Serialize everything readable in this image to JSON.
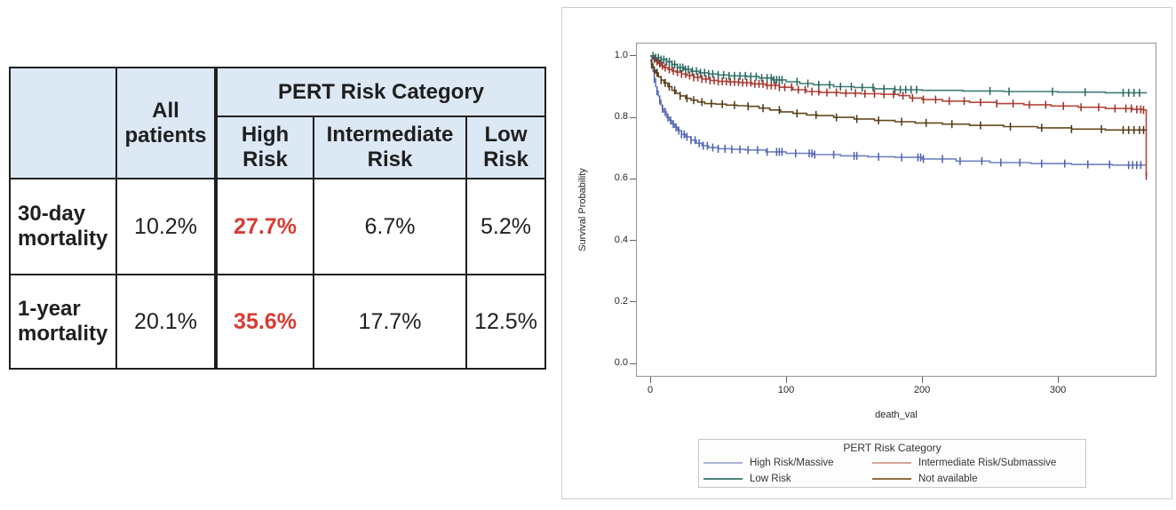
{
  "table": {
    "header": {
      "corner": "",
      "all_patients": "All patients",
      "group_title": "PERT Risk Category",
      "group_cols": [
        "High Risk",
        "Intermediate Risk",
        "Low Risk"
      ]
    },
    "rows": [
      {
        "label": "30-day mortality",
        "all": "10.2%",
        "high": "27.7%",
        "intermediate": "6.7%",
        "low": "5.2%"
      },
      {
        "label": "1-year mortality",
        "all": "20.1%",
        "high": "35.6%",
        "intermediate": "17.7%",
        "low": "12.5%"
      }
    ],
    "colors": {
      "header_bg": "#dce8f4",
      "highlight_red": "#d83b32",
      "border": "#1f1f1f"
    }
  },
  "chart_data": {
    "type": "line",
    "subtype": "kaplan_meier_step_survival",
    "title": "",
    "xlabel": "death_val",
    "ylabel": "Survival Probability",
    "xlim": [
      -10.5,
      372.5
    ],
    "ylim": [
      -0.043,
      1.043
    ],
    "xticks": [
      0,
      100,
      200,
      300
    ],
    "yticks": [
      0.0,
      0.2,
      0.4,
      0.6,
      0.8,
      1.0
    ],
    "grid": false,
    "legend": {
      "title": "PERT Risk Category",
      "position": "bottom",
      "columns": 2
    },
    "series": [
      {
        "name": "High Risk/Massive",
        "color": "#7282c4",
        "tick_color": "#4d5fae",
        "legend_color": "#a9b3d8",
        "points": [
          [
            0,
            1.0
          ],
          [
            1,
            0.975
          ],
          [
            2,
            0.95
          ],
          [
            3,
            0.925
          ],
          [
            4,
            0.9
          ],
          [
            5,
            0.885
          ],
          [
            6,
            0.87
          ],
          [
            7,
            0.855
          ],
          [
            8,
            0.84
          ],
          [
            9,
            0.828
          ],
          [
            10,
            0.818
          ],
          [
            12,
            0.8
          ],
          [
            14,
            0.79
          ],
          [
            16,
            0.778
          ],
          [
            18,
            0.768
          ],
          [
            20,
            0.757
          ],
          [
            23,
            0.745
          ],
          [
            26,
            0.737
          ],
          [
            30,
            0.726
          ],
          [
            34,
            0.716
          ],
          [
            38,
            0.708
          ],
          [
            43,
            0.702
          ],
          [
            50,
            0.698
          ],
          [
            60,
            0.696
          ],
          [
            70,
            0.694
          ],
          [
            85,
            0.688
          ],
          [
            100,
            0.683
          ],
          [
            120,
            0.679
          ],
          [
            140,
            0.675
          ],
          [
            160,
            0.672
          ],
          [
            180,
            0.67
          ],
          [
            200,
            0.665
          ],
          [
            225,
            0.658
          ],
          [
            250,
            0.653
          ],
          [
            280,
            0.65
          ],
          [
            310,
            0.647
          ],
          [
            340,
            0.645
          ],
          [
            365,
            0.643
          ]
        ],
        "censor_ticks": [
          3,
          5,
          7,
          9,
          11,
          13,
          15,
          17,
          19,
          21,
          23,
          25,
          27,
          30,
          33,
          36,
          39,
          42,
          46,
          50,
          55,
          60,
          66,
          72,
          79,
          86,
          93,
          95,
          97,
          107,
          117,
          119,
          121,
          135,
          150,
          152,
          168,
          185,
          197,
          199,
          201,
          215,
          228,
          244,
          258,
          272,
          288,
          305,
          322,
          338,
          352,
          355,
          358,
          361
        ]
      },
      {
        "name": "Intermediate Risk/Submassive",
        "color": "#b5463d",
        "tick_color": "#9e2f28",
        "legend_color": "#d8a49b",
        "points": [
          [
            0,
            1.0
          ],
          [
            2,
            0.99
          ],
          [
            4,
            0.982
          ],
          [
            6,
            0.975
          ],
          [
            8,
            0.968
          ],
          [
            10,
            0.962
          ],
          [
            13,
            0.956
          ],
          [
            16,
            0.951
          ],
          [
            19,
            0.947
          ],
          [
            23,
            0.941
          ],
          [
            27,
            0.936
          ],
          [
            32,
            0.93
          ],
          [
            38,
            0.925
          ],
          [
            44,
            0.92
          ],
          [
            50,
            0.917
          ],
          [
            58,
            0.915
          ],
          [
            66,
            0.913
          ],
          [
            75,
            0.909
          ],
          [
            85,
            0.904
          ],
          [
            95,
            0.898
          ],
          [
            105,
            0.89
          ],
          [
            115,
            0.884
          ],
          [
            125,
            0.881
          ],
          [
            140,
            0.879
          ],
          [
            155,
            0.877
          ],
          [
            170,
            0.875
          ],
          [
            183,
            0.871
          ],
          [
            191,
            0.863
          ],
          [
            200,
            0.858
          ],
          [
            215,
            0.853
          ],
          [
            235,
            0.849
          ],
          [
            255,
            0.845
          ],
          [
            275,
            0.841
          ],
          [
            295,
            0.837
          ],
          [
            315,
            0.833
          ],
          [
            335,
            0.829
          ],
          [
            355,
            0.826
          ],
          [
            363,
            0.824
          ],
          [
            365,
            0.61
          ]
        ],
        "censor_ticks": [
          3,
          5,
          7,
          9,
          11,
          14,
          17,
          20,
          23,
          26,
          29,
          32,
          35,
          38,
          41,
          44,
          47,
          50,
          53,
          56,
          59,
          62,
          65,
          68,
          71,
          74,
          77,
          80,
          83,
          86,
          89,
          92,
          95,
          99,
          104,
          109,
          114,
          119,
          124,
          130,
          137,
          144,
          151,
          158,
          165,
          172,
          179,
          186,
          193,
          201,
          210,
          220,
          231,
          243,
          255,
          267,
          279,
          291,
          304,
          317,
          330,
          342,
          350,
          354,
          358,
          361,
          363,
          365
        ]
      },
      {
        "name": "Low Risk",
        "color": "#3f7d74",
        "tick_color": "#25655c",
        "legend_color": "#4a837a",
        "points": [
          [
            0,
            1.0
          ],
          [
            4,
            0.994
          ],
          [
            8,
            0.988
          ],
          [
            12,
            0.981
          ],
          [
            16,
            0.972
          ],
          [
            20,
            0.962
          ],
          [
            25,
            0.956
          ],
          [
            30,
            0.95
          ],
          [
            36,
            0.945
          ],
          [
            43,
            0.941
          ],
          [
            50,
            0.938
          ],
          [
            58,
            0.935
          ],
          [
            71,
            0.933
          ],
          [
            80,
            0.928
          ],
          [
            90,
            0.922
          ],
          [
            100,
            0.916
          ],
          [
            110,
            0.91
          ],
          [
            120,
            0.906
          ],
          [
            135,
            0.9
          ],
          [
            150,
            0.897
          ],
          [
            165,
            0.893
          ],
          [
            180,
            0.89
          ],
          [
            200,
            0.888
          ],
          [
            230,
            0.886
          ],
          [
            260,
            0.884
          ],
          [
            300,
            0.882
          ],
          [
            335,
            0.88
          ],
          [
            365,
            0.878
          ]
        ],
        "censor_ticks": [
          2,
          4,
          6,
          8,
          10,
          12,
          14,
          16,
          18,
          20,
          22,
          24,
          26,
          28,
          31,
          34,
          37,
          40,
          43,
          46,
          50,
          54,
          58,
          62,
          66,
          70,
          74,
          78,
          82,
          86,
          89,
          91,
          93,
          95,
          97,
          108,
          116,
          124,
          132,
          140,
          148,
          156,
          164,
          172,
          180,
          184,
          188,
          192,
          196,
          250,
          264,
          296,
          320,
          348,
          352,
          356,
          360
        ]
      },
      {
        "name": "Not available",
        "color": "#63491d",
        "tick_color": "#4a3614",
        "legend_color": "#8e6c3f",
        "points": [
          [
            0,
            0.985
          ],
          [
            1,
            0.972
          ],
          [
            2,
            0.962
          ],
          [
            3,
            0.953
          ],
          [
            4,
            0.945
          ],
          [
            6,
            0.932
          ],
          [
            8,
            0.921
          ],
          [
            10,
            0.912
          ],
          [
            13,
            0.9
          ],
          [
            16,
            0.888
          ],
          [
            19,
            0.878
          ],
          [
            22,
            0.87
          ],
          [
            26,
            0.862
          ],
          [
            30,
            0.856
          ],
          [
            35,
            0.85
          ],
          [
            40,
            0.845
          ],
          [
            48,
            0.843
          ],
          [
            56,
            0.84
          ],
          [
            64,
            0.838
          ],
          [
            72,
            0.836
          ],
          [
            80,
            0.83
          ],
          [
            88,
            0.824
          ],
          [
            96,
            0.818
          ],
          [
            105,
            0.813
          ],
          [
            115,
            0.808
          ],
          [
            123,
            0.806
          ],
          [
            135,
            0.8
          ],
          [
            150,
            0.795
          ],
          [
            165,
            0.79
          ],
          [
            180,
            0.786
          ],
          [
            195,
            0.782
          ],
          [
            215,
            0.778
          ],
          [
            235,
            0.774
          ],
          [
            260,
            0.77
          ],
          [
            285,
            0.766
          ],
          [
            310,
            0.762
          ],
          [
            335,
            0.759
          ],
          [
            365,
            0.757
          ]
        ],
        "censor_ticks": [
          1,
          3,
          5,
          8,
          11,
          14,
          18,
          22,
          27,
          32,
          38,
          45,
          53,
          62,
          72,
          83,
          95,
          108,
          122,
          137,
          152,
          168,
          185,
          203,
          222,
          243,
          265,
          288,
          310,
          332,
          348,
          352,
          356,
          360,
          363
        ]
      }
    ]
  }
}
